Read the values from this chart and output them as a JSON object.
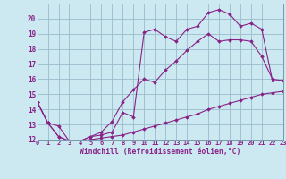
{
  "xlabel": "Windchill (Refroidissement éolien,°C)",
  "bg_color": "#cce8f0",
  "line_color": "#882288",
  "grid_color": "#99bbcc",
  "xmin": 0,
  "xmax": 23,
  "ymin": 12,
  "ymax": 21,
  "line1_x": [
    0,
    1,
    2,
    3,
    4,
    5,
    6,
    7,
    8,
    9,
    10,
    11,
    12,
    13,
    14,
    15,
    16,
    17,
    18,
    19,
    20,
    21,
    22,
    23
  ],
  "line1_y": [
    14.5,
    13.1,
    12.9,
    11.9,
    11.9,
    12.2,
    12.3,
    12.5,
    13.8,
    13.5,
    19.1,
    19.3,
    18.8,
    18.5,
    19.3,
    19.5,
    20.4,
    20.6,
    20.3,
    19.5,
    19.7,
    19.3,
    15.9,
    15.9
  ],
  "line2_x": [
    0,
    1,
    2,
    3,
    4,
    5,
    6,
    7,
    8,
    9,
    10,
    11,
    12,
    13,
    14,
    15,
    16,
    17,
    18,
    19,
    20,
    21,
    22,
    23
  ],
  "line2_y": [
    14.5,
    13.1,
    12.2,
    11.9,
    11.9,
    12.2,
    12.5,
    13.2,
    14.5,
    15.3,
    16.0,
    15.8,
    16.6,
    17.2,
    17.9,
    18.5,
    19.0,
    18.5,
    18.6,
    18.6,
    18.5,
    17.5,
    16.0,
    15.9
  ],
  "line3_x": [
    0,
    1,
    2,
    3,
    4,
    5,
    6,
    7,
    8,
    9,
    10,
    11,
    12,
    13,
    14,
    15,
    16,
    17,
    18,
    19,
    20,
    21,
    22,
    23
  ],
  "line3_y": [
    14.5,
    13.1,
    12.2,
    11.9,
    11.9,
    12.0,
    12.1,
    12.2,
    12.3,
    12.5,
    12.7,
    12.9,
    13.1,
    13.3,
    13.5,
    13.7,
    14.0,
    14.2,
    14.4,
    14.6,
    14.8,
    15.0,
    15.1,
    15.2
  ],
  "xticks": [
    0,
    1,
    2,
    3,
    4,
    5,
    6,
    7,
    8,
    9,
    10,
    11,
    12,
    13,
    14,
    15,
    16,
    17,
    18,
    19,
    20,
    21,
    22,
    23
  ],
  "yticks": [
    12,
    13,
    14,
    15,
    16,
    17,
    18,
    19,
    20
  ]
}
